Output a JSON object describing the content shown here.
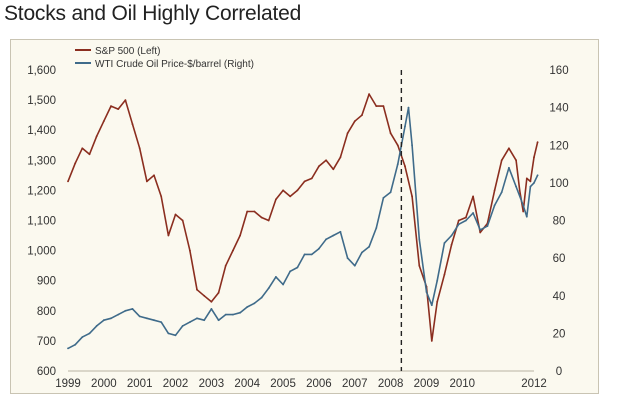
{
  "page": {
    "title": "Stocks and Oil Highly Correlated"
  },
  "chart_data": {
    "type": "line",
    "title": "Stocks and Oil Highly Correlated",
    "x_ticks": [
      "1999",
      "2000",
      "2001",
      "2002",
      "2003",
      "2004",
      "2005",
      "2006",
      "2007",
      "2008",
      "2009",
      "2010",
      "2012"
    ],
    "x_range": [
      1999.0,
      2012.0
    ],
    "y_left": {
      "ticks": [
        "1,600",
        "1,500",
        "1,400",
        "1,300",
        "1,200",
        "1,100",
        "1,000",
        "900",
        "800",
        "700",
        "600"
      ],
      "range": [
        600,
        1600
      ]
    },
    "y_right": {
      "ticks": [
        "160",
        "140",
        "120",
        "100",
        "80",
        "60",
        "40",
        "20",
        "0"
      ],
      "range": [
        0,
        160
      ]
    },
    "grid": false,
    "legend_position": "top-left",
    "annotation": {
      "type": "dashed-vertical-line",
      "x": 2008.3
    },
    "series": [
      {
        "name": "S&P 500 (Left)",
        "axis": "left",
        "color": "#8b2e1f",
        "points": [
          [
            1999.0,
            1230
          ],
          [
            1999.2,
            1290
          ],
          [
            1999.4,
            1340
          ],
          [
            1999.6,
            1320
          ],
          [
            1999.8,
            1380
          ],
          [
            2000.0,
            1430
          ],
          [
            2000.2,
            1480
          ],
          [
            2000.4,
            1470
          ],
          [
            2000.6,
            1500
          ],
          [
            2000.8,
            1420
          ],
          [
            2001.0,
            1340
          ],
          [
            2001.2,
            1230
          ],
          [
            2001.4,
            1250
          ],
          [
            2001.6,
            1180
          ],
          [
            2001.8,
            1050
          ],
          [
            2002.0,
            1120
          ],
          [
            2002.2,
            1100
          ],
          [
            2002.4,
            1000
          ],
          [
            2002.6,
            870
          ],
          [
            2002.8,
            850
          ],
          [
            2003.0,
            830
          ],
          [
            2003.2,
            860
          ],
          [
            2003.4,
            950
          ],
          [
            2003.6,
            1000
          ],
          [
            2003.8,
            1050
          ],
          [
            2004.0,
            1130
          ],
          [
            2004.2,
            1130
          ],
          [
            2004.4,
            1110
          ],
          [
            2004.6,
            1100
          ],
          [
            2004.8,
            1170
          ],
          [
            2005.0,
            1200
          ],
          [
            2005.2,
            1180
          ],
          [
            2005.4,
            1200
          ],
          [
            2005.6,
            1230
          ],
          [
            2005.8,
            1240
          ],
          [
            2006.0,
            1280
          ],
          [
            2006.2,
            1300
          ],
          [
            2006.4,
            1270
          ],
          [
            2006.6,
            1310
          ],
          [
            2006.8,
            1390
          ],
          [
            2007.0,
            1430
          ],
          [
            2007.2,
            1450
          ],
          [
            2007.4,
            1520
          ],
          [
            2007.6,
            1480
          ],
          [
            2007.8,
            1480
          ],
          [
            2008.0,
            1390
          ],
          [
            2008.2,
            1350
          ],
          [
            2008.4,
            1280
          ],
          [
            2008.6,
            1180
          ],
          [
            2008.8,
            950
          ],
          [
            2009.0,
            880
          ],
          [
            2009.15,
            700
          ],
          [
            2009.3,
            830
          ],
          [
            2009.5,
            920
          ],
          [
            2009.7,
            1020
          ],
          [
            2009.9,
            1100
          ],
          [
            2010.1,
            1110
          ],
          [
            2010.3,
            1180
          ],
          [
            2010.5,
            1060
          ],
          [
            2010.7,
            1090
          ],
          [
            2010.9,
            1200
          ],
          [
            2011.1,
            1300
          ],
          [
            2011.3,
            1340
          ],
          [
            2011.5,
            1300
          ],
          [
            2011.6,
            1200
          ],
          [
            2011.7,
            1130
          ],
          [
            2011.8,
            1240
          ],
          [
            2011.9,
            1230
          ],
          [
            2012.0,
            1310
          ],
          [
            2012.1,
            1360
          ]
        ]
      },
      {
        "name": "WTI Crude Oil Price-$/barrel (Right)",
        "axis": "right",
        "color": "#3f6b8a",
        "points": [
          [
            1999.0,
            12
          ],
          [
            1999.2,
            14
          ],
          [
            1999.4,
            18
          ],
          [
            1999.6,
            20
          ],
          [
            1999.8,
            24
          ],
          [
            2000.0,
            27
          ],
          [
            2000.2,
            28
          ],
          [
            2000.4,
            30
          ],
          [
            2000.6,
            32
          ],
          [
            2000.8,
            33
          ],
          [
            2001.0,
            29
          ],
          [
            2001.2,
            28
          ],
          [
            2001.4,
            27
          ],
          [
            2001.6,
            26
          ],
          [
            2001.8,
            20
          ],
          [
            2002.0,
            19
          ],
          [
            2002.2,
            24
          ],
          [
            2002.4,
            26
          ],
          [
            2002.6,
            28
          ],
          [
            2002.8,
            27
          ],
          [
            2003.0,
            33
          ],
          [
            2003.2,
            27
          ],
          [
            2003.4,
            30
          ],
          [
            2003.6,
            30
          ],
          [
            2003.8,
            31
          ],
          [
            2004.0,
            34
          ],
          [
            2004.2,
            36
          ],
          [
            2004.4,
            39
          ],
          [
            2004.6,
            44
          ],
          [
            2004.8,
            50
          ],
          [
            2005.0,
            46
          ],
          [
            2005.2,
            53
          ],
          [
            2005.4,
            55
          ],
          [
            2005.6,
            62
          ],
          [
            2005.8,
            62
          ],
          [
            2006.0,
            65
          ],
          [
            2006.2,
            70
          ],
          [
            2006.4,
            72
          ],
          [
            2006.6,
            74
          ],
          [
            2006.8,
            60
          ],
          [
            2007.0,
            56
          ],
          [
            2007.2,
            63
          ],
          [
            2007.4,
            66
          ],
          [
            2007.6,
            76
          ],
          [
            2007.8,
            92
          ],
          [
            2008.0,
            95
          ],
          [
            2008.2,
            110
          ],
          [
            2008.4,
            130
          ],
          [
            2008.5,
            140
          ],
          [
            2008.6,
            120
          ],
          [
            2008.8,
            70
          ],
          [
            2009.0,
            42
          ],
          [
            2009.15,
            35
          ],
          [
            2009.3,
            48
          ],
          [
            2009.5,
            68
          ],
          [
            2009.7,
            72
          ],
          [
            2009.9,
            78
          ],
          [
            2010.1,
            80
          ],
          [
            2010.3,
            84
          ],
          [
            2010.5,
            75
          ],
          [
            2010.7,
            77
          ],
          [
            2010.9,
            88
          ],
          [
            2011.1,
            95
          ],
          [
            2011.3,
            108
          ],
          [
            2011.5,
            98
          ],
          [
            2011.7,
            88
          ],
          [
            2011.8,
            82
          ],
          [
            2011.9,
            98
          ],
          [
            2012.0,
            100
          ],
          [
            2012.1,
            104
          ]
        ]
      }
    ]
  }
}
